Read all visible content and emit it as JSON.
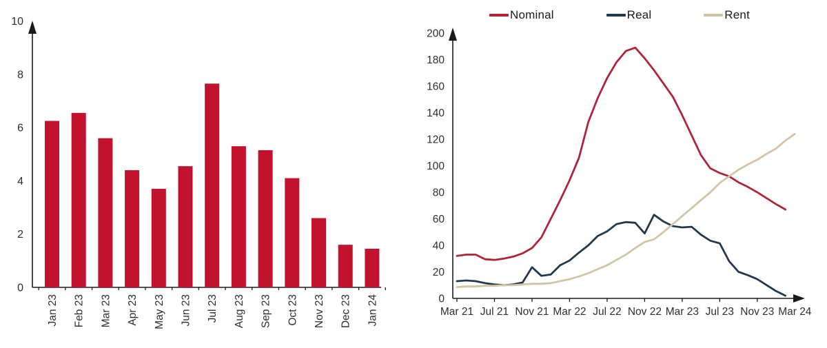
{
  "page": {
    "background": "#ffffff"
  },
  "chart_data": [
    {
      "type": "bar",
      "title": "",
      "categories": [
        "Jan 23",
        "Feb 23",
        "Mar 23",
        "Apr 23",
        "May 23",
        "Jun 23",
        "Jul 23",
        "Aug 23",
        "Sep 23",
        "Oct 23",
        "Nov 23",
        "Dec 23",
        "Jan 24"
      ],
      "values": [
        6.25,
        6.55,
        5.6,
        4.4,
        3.7,
        4.55,
        7.65,
        5.3,
        5.15,
        4.1,
        2.6,
        1.6,
        1.45
      ],
      "ylim": [
        0,
        10
      ],
      "y_ticks": [
        0,
        2,
        4,
        6,
        8,
        10
      ],
      "grid": false,
      "legend": "none",
      "bar_color": "#c2122e",
      "axis_color": "#1a1a1a",
      "label_color": "#2e2e2e"
    },
    {
      "type": "line",
      "title": "",
      "ylim": [
        0,
        200
      ],
      "y_ticks": [
        0,
        20,
        40,
        60,
        80,
        100,
        120,
        140,
        160,
        180,
        200
      ],
      "grid": false,
      "legend_position": "top",
      "axis_color": "#1a1a1a",
      "label_color": "#2e2e2e",
      "x_axis": {
        "tick_labels": [
          "Mar 21",
          "Jul 21",
          "Nov 21",
          "Mar 22",
          "Jul 22",
          "Nov 22",
          "Mar 23",
          "Jul 23",
          "Nov 23",
          "Mar 24"
        ],
        "tick_months": [
          0,
          4,
          8,
          12,
          16,
          20,
          24,
          28,
          32,
          36
        ],
        "months_span": 36
      },
      "series": [
        {
          "name": "Nominal",
          "color": "#b02438",
          "values": [
            32,
            33,
            33,
            29.5,
            29,
            30,
            31.5,
            34,
            38,
            46,
            60,
            74,
            89,
            106,
            133,
            151,
            166,
            178,
            186.5,
            189,
            181,
            172,
            162,
            152,
            138,
            123,
            108,
            98,
            94.5,
            92,
            87.5,
            84,
            80,
            75.5,
            71,
            67,
            null
          ]
        },
        {
          "name": "Real",
          "color": "#22384f",
          "values": [
            13,
            13.5,
            13,
            11.5,
            10.5,
            10,
            10.5,
            12,
            23.5,
            17,
            18,
            25,
            28.5,
            34.5,
            40,
            47,
            50.5,
            56,
            57.5,
            57,
            49,
            63,
            58,
            54.5,
            53.5,
            54,
            48,
            43.5,
            41.5,
            28,
            20,
            17.5,
            14.5,
            10,
            5.5,
            2,
            null
          ]
        },
        {
          "name": "Rent",
          "color": "#d2c5a3",
          "values": [
            8.5,
            9,
            9,
            9.5,
            9.5,
            10,
            10,
            10.5,
            11,
            11,
            11.5,
            13,
            14.5,
            16.5,
            19,
            22,
            25,
            29,
            33,
            38,
            42.5,
            44.5,
            50,
            56,
            62,
            68,
            74,
            80,
            87,
            92,
            97,
            101,
            104.5,
            109,
            113,
            119,
            124
          ]
        }
      ]
    }
  ]
}
